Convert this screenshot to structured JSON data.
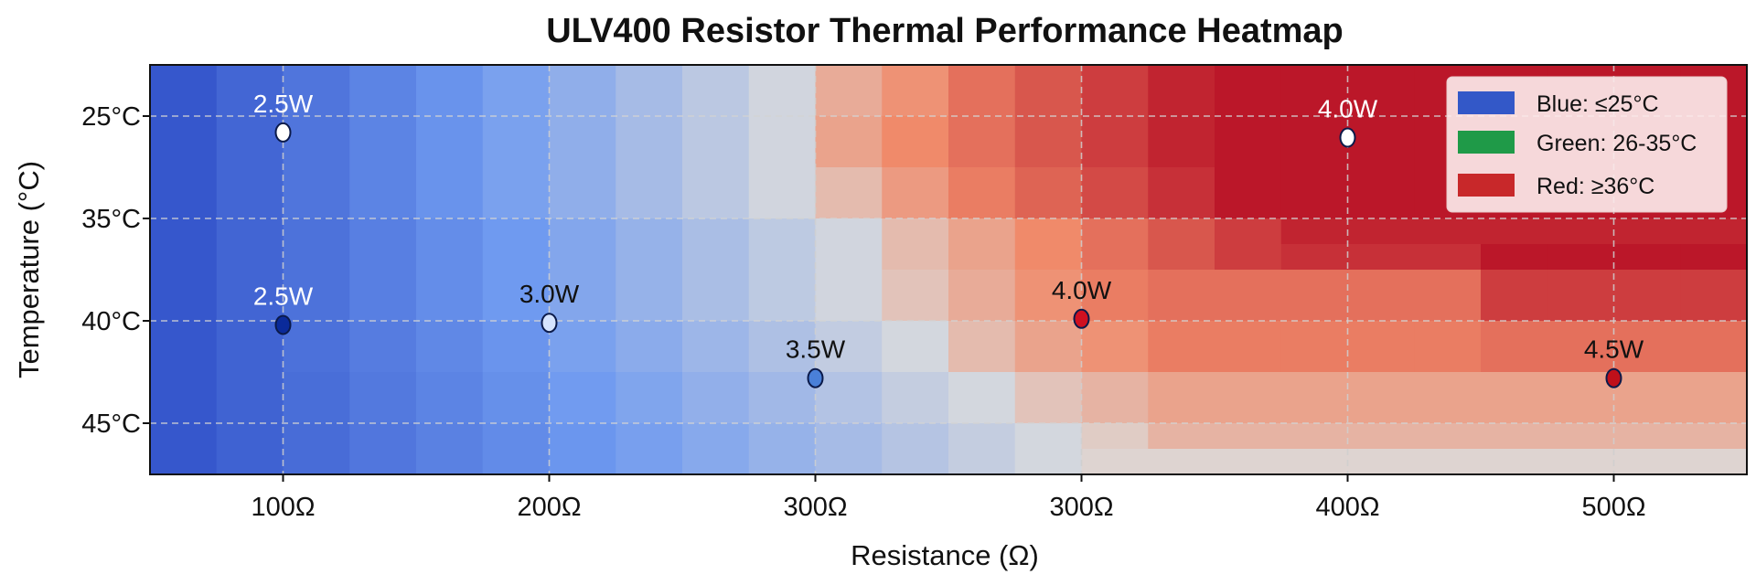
{
  "chart_data": {
    "type": "heatmap",
    "title": "ULV400 Resistor Thermal Performance Heatmap",
    "xlabel": "Resistance (Ω)",
    "ylabel": "Temperature (°C)",
    "x_tick_labels": [
      "100Ω",
      "200Ω",
      "300Ω",
      "300Ω",
      "400Ω",
      "500Ω"
    ],
    "y_tick_labels": [
      "25°C",
      "35°C",
      "40°C",
      "45°C"
    ],
    "y_tick_values": [
      25,
      35,
      40,
      45
    ],
    "grid": true,
    "colormap": {
      "low": "#3050c8",
      "mid": "#dcdcdc",
      "high": "#b50a22"
    },
    "grid_values": [
      [
        -0.95,
        -0.85,
        -0.75,
        -0.65,
        -0.55,
        -0.45,
        -0.35,
        -0.25,
        -0.15,
        -0.05,
        0.3,
        0.45,
        0.6,
        0.7,
        0.8,
        0.9,
        0.95,
        0.95,
        0.95,
        0.95,
        0.95,
        0.95,
        0.95,
        0.95
      ],
      [
        -0.95,
        -0.85,
        -0.75,
        -0.65,
        -0.55,
        -0.45,
        -0.35,
        -0.25,
        -0.15,
        -0.05,
        0.3,
        0.45,
        0.6,
        0.7,
        0.8,
        0.9,
        0.95,
        0.95,
        0.95,
        0.95,
        0.95,
        0.95,
        0.95,
        0.95
      ],
      [
        -0.95,
        -0.85,
        -0.75,
        -0.65,
        -0.55,
        -0.45,
        -0.35,
        -0.25,
        -0.15,
        -0.05,
        0.35,
        0.5,
        0.6,
        0.7,
        0.8,
        0.9,
        0.95,
        0.95,
        0.95,
        0.95,
        0.95,
        0.95,
        0.95,
        0.95
      ],
      [
        -0.95,
        -0.85,
        -0.75,
        -0.65,
        -0.55,
        -0.45,
        -0.35,
        -0.25,
        -0.15,
        -0.05,
        0.35,
        0.5,
        0.6,
        0.7,
        0.8,
        0.9,
        0.95,
        0.95,
        0.95,
        0.95,
        0.95,
        0.95,
        0.95,
        0.95
      ],
      [
        -0.95,
        -0.85,
        -0.75,
        -0.65,
        -0.55,
        -0.45,
        -0.35,
        -0.25,
        -0.15,
        -0.05,
        0.2,
        0.4,
        0.55,
        0.65,
        0.75,
        0.85,
        0.95,
        0.95,
        0.95,
        0.95,
        0.95,
        0.95,
        0.95,
        0.95
      ],
      [
        -0.95,
        -0.85,
        -0.75,
        -0.65,
        -0.55,
        -0.45,
        -0.35,
        -0.25,
        -0.15,
        -0.05,
        0.2,
        0.4,
        0.55,
        0.65,
        0.75,
        0.85,
        0.95,
        0.95,
        0.95,
        0.95,
        0.95,
        0.95,
        0.95,
        0.95
      ],
      [
        -0.95,
        -0.86,
        -0.77,
        -0.68,
        -0.59,
        -0.5,
        -0.41,
        -0.32,
        -0.23,
        -0.14,
        -0.05,
        0.2,
        0.35,
        0.5,
        0.6,
        0.7,
        0.8,
        0.9,
        0.9,
        0.9,
        0.9,
        0.9,
        0.9,
        0.9
      ],
      [
        -0.95,
        -0.86,
        -0.77,
        -0.68,
        -0.59,
        -0.5,
        -0.41,
        -0.32,
        -0.23,
        -0.14,
        -0.05,
        0.2,
        0.35,
        0.5,
        0.6,
        0.7,
        0.8,
        0.85,
        0.85,
        0.85,
        0.95,
        0.95,
        0.95,
        0.95
      ],
      [
        -0.95,
        -0.86,
        -0.77,
        -0.68,
        -0.59,
        -0.5,
        -0.41,
        -0.32,
        -0.23,
        -0.14,
        -0.05,
        0.15,
        0.3,
        0.45,
        0.55,
        0.6,
        0.6,
        0.6,
        0.6,
        0.6,
        0.8,
        0.8,
        0.8,
        0.8
      ],
      [
        -0.95,
        -0.86,
        -0.77,
        -0.68,
        -0.59,
        -0.5,
        -0.41,
        -0.32,
        -0.23,
        -0.14,
        -0.05,
        0.15,
        0.3,
        0.45,
        0.55,
        0.6,
        0.6,
        0.6,
        0.6,
        0.6,
        0.8,
        0.8,
        0.8,
        0.8
      ],
      [
        -0.95,
        -0.87,
        -0.78,
        -0.7,
        -0.62,
        -0.54,
        -0.45,
        -0.37,
        -0.29,
        -0.21,
        -0.12,
        -0.04,
        0.2,
        0.35,
        0.45,
        0.55,
        0.55,
        0.55,
        0.55,
        0.55,
        0.6,
        0.6,
        0.6,
        0.6
      ],
      [
        -0.95,
        -0.87,
        -0.78,
        -0.7,
        -0.62,
        -0.54,
        -0.45,
        -0.37,
        -0.29,
        -0.21,
        -0.12,
        -0.04,
        0.2,
        0.35,
        0.45,
        0.55,
        0.55,
        0.55,
        0.55,
        0.55,
        0.6,
        0.6,
        0.6,
        0.6
      ],
      [
        -0.95,
        -0.87,
        -0.8,
        -0.72,
        -0.65,
        -0.57,
        -0.49,
        -0.42,
        -0.34,
        -0.27,
        -0.19,
        -0.11,
        -0.04,
        0.15,
        0.25,
        0.35,
        0.35,
        0.35,
        0.35,
        0.35,
        0.35,
        0.35,
        0.35,
        0.35
      ],
      [
        -0.95,
        -0.87,
        -0.8,
        -0.72,
        -0.65,
        -0.57,
        -0.49,
        -0.42,
        -0.34,
        -0.27,
        -0.19,
        -0.11,
        -0.04,
        0.15,
        0.25,
        0.35,
        0.35,
        0.35,
        0.35,
        0.35,
        0.35,
        0.35,
        0.35,
        0.35
      ],
      [
        -0.95,
        -0.88,
        -0.81,
        -0.74,
        -0.67,
        -0.6,
        -0.53,
        -0.46,
        -0.39,
        -0.32,
        -0.25,
        -0.18,
        -0.11,
        -0.04,
        0.1,
        0.25,
        0.25,
        0.25,
        0.25,
        0.25,
        0.25,
        0.25,
        0.25,
        0.25
      ],
      [
        -0.95,
        -0.88,
        -0.81,
        -0.74,
        -0.67,
        -0.6,
        -0.53,
        -0.46,
        -0.39,
        -0.32,
        -0.25,
        -0.18,
        -0.11,
        -0.04,
        0.05,
        0.05,
        0.05,
        0.05,
        0.05,
        0.05,
        0.05,
        0.05,
        0.05,
        0.05
      ]
    ],
    "points": [
      {
        "label": "2.5W",
        "x_index": 0,
        "temperature": 26.6,
        "fill": "#ffffff",
        "label_color": "#ffffff"
      },
      {
        "label": "4.0W",
        "x_index": 4,
        "temperature": 27.1,
        "fill": "#ffffff",
        "label_color": "#ffffff"
      },
      {
        "label": "2.5W",
        "x_index": 0,
        "temperature": 40.2,
        "fill": "#0a2a9a",
        "label_color": "#ffffff"
      },
      {
        "label": "3.0W",
        "x_index": 1,
        "temperature": 40.1,
        "fill": "#d6e4ff",
        "label_color": "#111111"
      },
      {
        "label": "3.5W",
        "x_index": 2,
        "temperature": 42.8,
        "fill": "#4a80d8",
        "label_color": "#111111"
      },
      {
        "label": "4.0W",
        "x_index": 3,
        "temperature": 39.9,
        "fill": "#d01020",
        "label_color": "#111111"
      },
      {
        "label": "4.5W",
        "x_index": 5,
        "temperature": 42.8,
        "fill": "#c0101a",
        "label_color": "#111111"
      }
    ],
    "legend": {
      "placement": "top-right",
      "entries": [
        {
          "label": "Blue: ≤25°C",
          "color": "#3358c8"
        },
        {
          "label": "Green: 26-35°C",
          "color": "#1f9a48"
        },
        {
          "label": "Red: ≥36°C",
          "color": "#c8282a"
        }
      ]
    }
  }
}
